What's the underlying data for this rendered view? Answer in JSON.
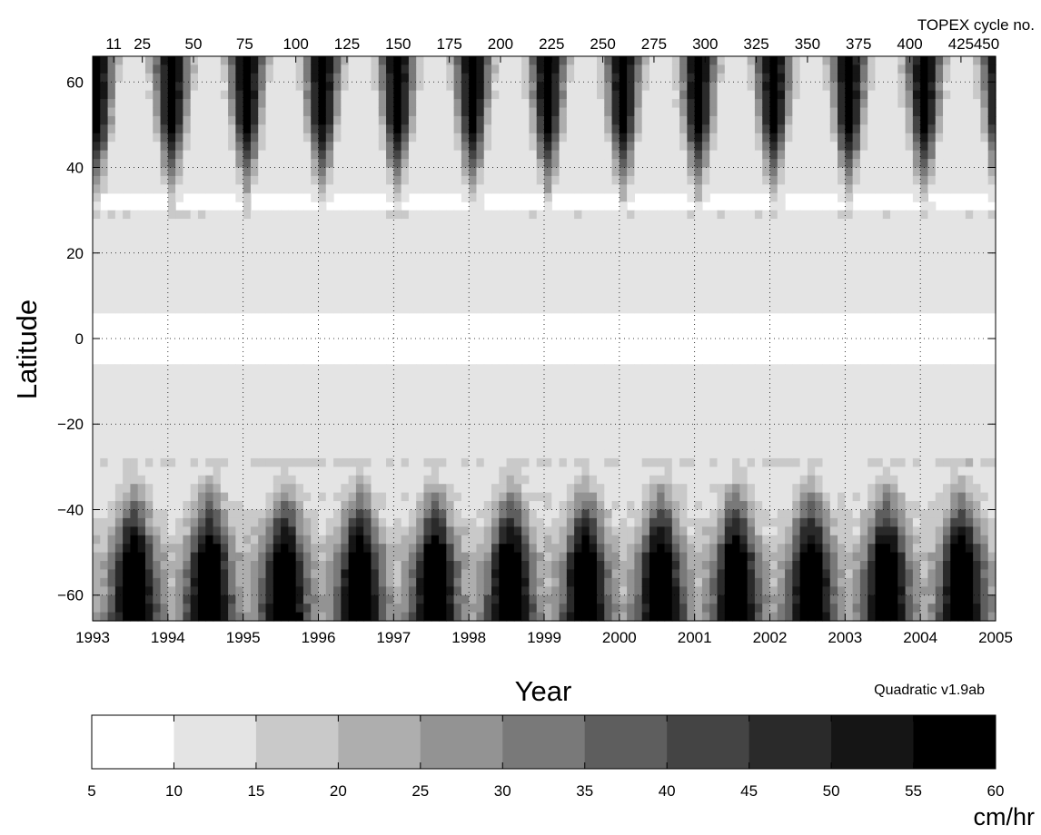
{
  "chart_data": {
    "type": "heatmap",
    "xlabel": "Year",
    "ylabel": "Latitude",
    "x_ticks": [
      "1993",
      "1994",
      "1995",
      "1996",
      "1997",
      "1998",
      "1999",
      "2000",
      "2001",
      "2002",
      "2003",
      "2004",
      "2005"
    ],
    "xlim": [
      1993,
      2005
    ],
    "y_ticks": [
      "60",
      "40",
      "20",
      "0",
      "−20",
      "−40",
      "−60"
    ],
    "y_tick_values": [
      60,
      40,
      20,
      0,
      -20,
      -40,
      -60
    ],
    "ylim": [
      -66,
      66
    ],
    "grid": true,
    "top_axis_label": "TOPEX cycle no.",
    "top_ticks": [
      "11",
      "25",
      "50",
      "75",
      "100",
      "125",
      "150",
      "175",
      "200",
      "225",
      "250",
      "275",
      "300",
      "325",
      "350",
      "375",
      "400",
      "425",
      "450"
    ],
    "top_tick_years": [
      1993.28,
      1993.66,
      1994.34,
      1995.02,
      1995.7,
      1996.38,
      1997.06,
      1997.74,
      1998.42,
      1999.1,
      1999.78,
      2000.46,
      2001.14,
      2001.82,
      2002.5,
      2003.18,
      2003.86,
      2004.54,
      2005.22
    ],
    "annotation": "Quadratic v1.9ab",
    "colorbar": {
      "ticks": [
        "5",
        "10",
        "15",
        "20",
        "25",
        "30",
        "35",
        "40",
        "45",
        "50",
        "55",
        "60"
      ],
      "levels": [
        5,
        10,
        15,
        20,
        25,
        30,
        35,
        40,
        45,
        50,
        55,
        60
      ],
      "colors": [
        "#ffffff",
        "#e4e4e4",
        "#c9c9c9",
        "#aeaeae",
        "#939393",
        "#797979",
        "#5e5e5e",
        "#444444",
        "#2a2a2a",
        "#151515",
        "#000000"
      ],
      "unit": "cm/hr"
    },
    "data_description_values": {
      "seasonal_peak_north": 1.05,
      "seasonal_peak_south": 0.55,
      "north_max_rate": 60,
      "south_max_rate": 60,
      "equatorial_min_rate": 5
    }
  }
}
